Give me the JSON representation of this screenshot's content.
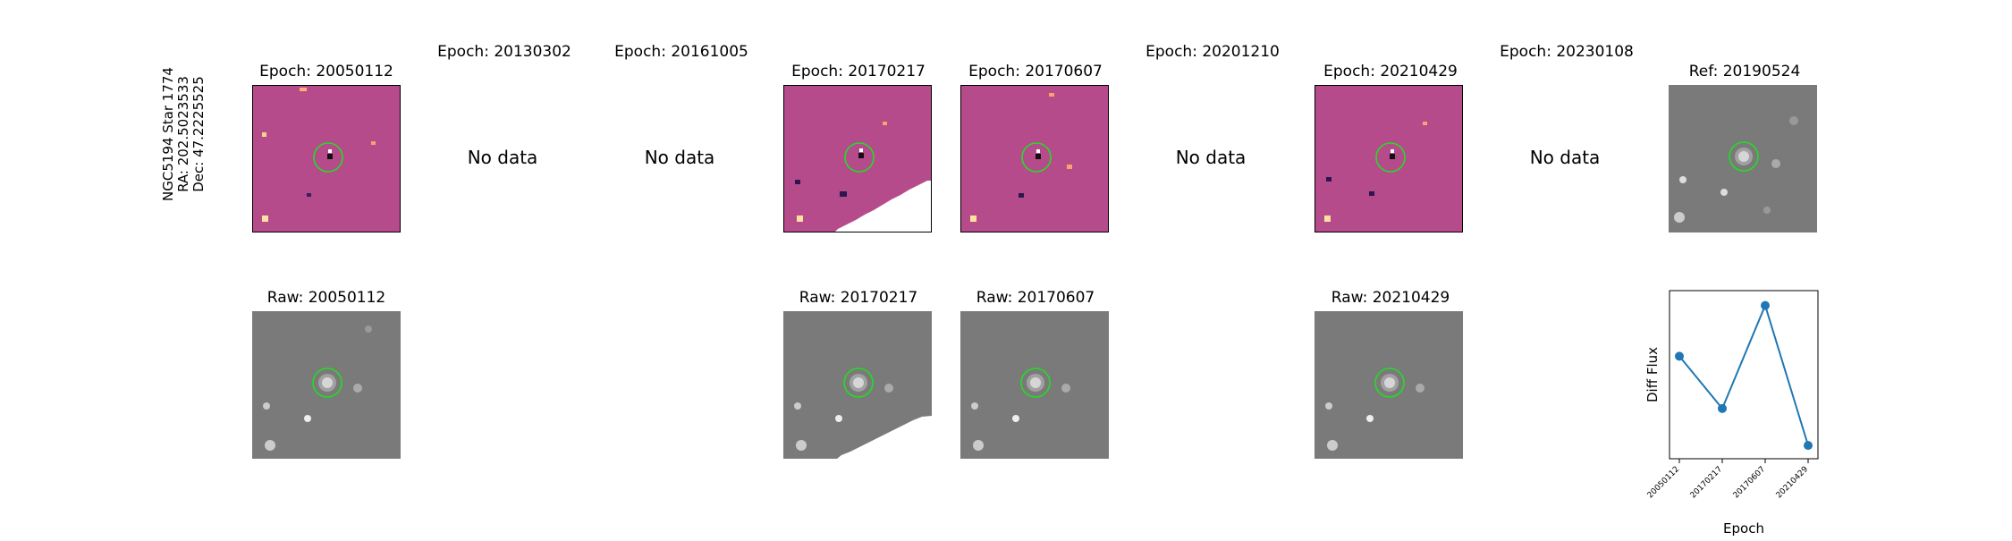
{
  "star_info": {
    "line1": "NGC5194 Star 1774",
    "line2": "RA: 202.5023533",
    "line3": "Dec: 47.2225525"
  },
  "epochs": [
    {
      "label": "Epoch: 20050112"
    },
    {
      "label": "Epoch: 20130302"
    },
    {
      "label": "Epoch: 20161005"
    },
    {
      "label": "Epoch: 20170217"
    },
    {
      "label": "Epoch: 20170607"
    },
    {
      "label": "Epoch: 20201210"
    },
    {
      "label": "Epoch: 20210429"
    },
    {
      "label": "Epoch: 20230108"
    }
  ],
  "no_data_text": "No data",
  "ref_label": "Ref: 20190524",
  "raw": [
    {
      "label": "Raw: 20050112"
    },
    {
      "label": "Raw: 20170217"
    },
    {
      "label": "Raw: 20170607"
    },
    {
      "label": "Raw: 20210429"
    }
  ],
  "chart_data": {
    "type": "line",
    "title": "",
    "xlabel": "Epoch",
    "ylabel": "Diff Flux",
    "categories": [
      "20050112",
      "20170217",
      "20170607",
      "20210429"
    ],
    "values": [
      0.62,
      0.28,
      0.95,
      0.04
    ],
    "ylim": [
      0,
      1
    ],
    "color": "#1f77b4",
    "marker_color": "#00ff00"
  }
}
